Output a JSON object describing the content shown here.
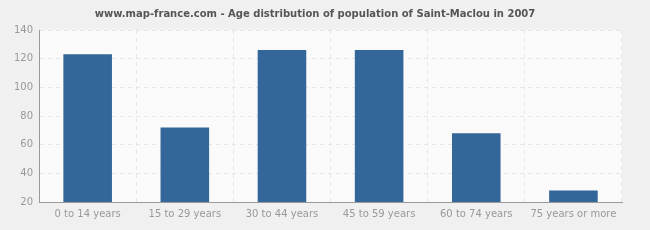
{
  "chart_data": {
    "type": "bar",
    "title": "www.map-france.com - Age distribution of population of Saint-Maclou in 2007",
    "categories": [
      "0 to 14 years",
      "15 to 29 years",
      "30 to 44 years",
      "45 to 59 years",
      "60 to 74 years",
      "75 years or more"
    ],
    "values": [
      123,
      72,
      126,
      126,
      68,
      28
    ],
    "color": "#336699",
    "ylim": [
      20,
      140
    ],
    "yticks": [
      20,
      40,
      60,
      80,
      100,
      120,
      140
    ],
    "grid": true
  }
}
